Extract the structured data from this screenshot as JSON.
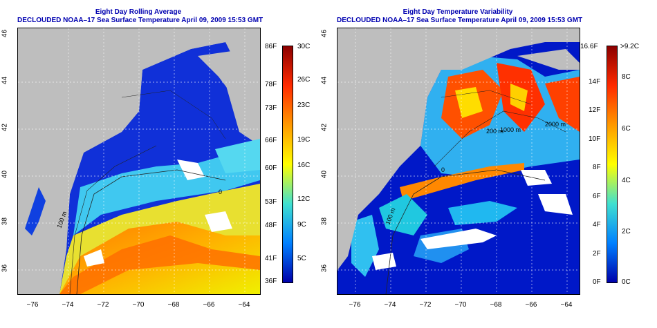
{
  "left_panel": {
    "title_line1": "Eight Day Rolling Average",
    "title_line2": "DECLOUDED NOAA–17 Sea Surface Temperature April 09, 2009 15:53 GMT",
    "lat_ticks": [
      "46",
      "44",
      "42",
      "40",
      "38",
      "36"
    ],
    "lon_ticks": [
      "−76",
      "−74",
      "−72",
      "−70",
      "−68",
      "−66",
      "−64"
    ],
    "colorbar_f": [
      "86F",
      "78F",
      "73F",
      "66F",
      "60F",
      "53F",
      "48F",
      "41F",
      "36F"
    ],
    "colorbar_c": [
      "30C",
      "26C",
      "23C",
      "19C",
      "16C",
      "12C",
      "9C",
      "5C"
    ],
    "contour_labels": [
      "100 m",
      "0"
    ]
  },
  "right_panel": {
    "title_line1": "Eight Day Temperature Variability",
    "title_line2": "DECLOUDED NOAA–17 Sea Surface Temperature April 09, 2009 15:53 GMT",
    "lat_ticks": [
      "46",
      "44",
      "42",
      "40",
      "38",
      "36"
    ],
    "lon_ticks": [
      "−76",
      "−74",
      "−72",
      "−70",
      "−68",
      "−66",
      "−64"
    ],
    "colorbar_f": [
      "16.6F",
      "14F",
      "12F",
      "10F",
      "8F",
      "6F",
      "4F",
      "2F",
      "0F"
    ],
    "colorbar_c": [
      ">9.2C",
      "8C",
      "6C",
      "4C",
      "2C",
      "0C"
    ],
    "contour_labels": [
      "1000 m",
      "200 m",
      "2000 m",
      "100 m",
      "0"
    ]
  },
  "colors": {
    "land": "#bebebe",
    "title": "#0000b0",
    "colorbar_stops": [
      "#8b0000",
      "#ff2a00",
      "#ff9900",
      "#ffff00",
      "#40e0d0",
      "#0080ff",
      "#0000aa"
    ]
  }
}
